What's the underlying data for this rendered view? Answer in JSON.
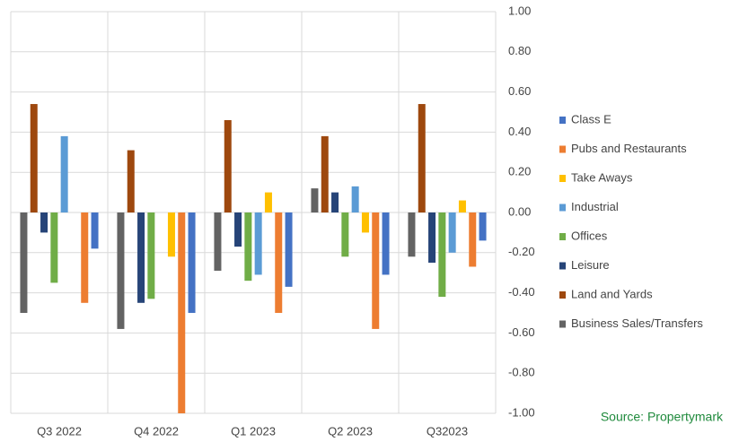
{
  "chart_data": {
    "type": "bar",
    "categories": [
      "Q3 2022",
      "Q4 2022",
      "Q1 2023",
      "Q2 2023",
      "Q32023"
    ],
    "series": [
      {
        "name": "Class E",
        "color": "#4472c4",
        "values": [
          -0.18,
          -0.5,
          -0.37,
          -0.31,
          -0.14
        ]
      },
      {
        "name": "Pubs and Restaurants",
        "color": "#ed7d31",
        "values": [
          -0.45,
          -1.0,
          -0.5,
          -0.58,
          -0.27
        ]
      },
      {
        "name": "Take Aways",
        "color": "#ffc000",
        "values": [
          0,
          -0.22,
          0.1,
          -0.1,
          0.06
        ]
      },
      {
        "name": "Industrial",
        "color": "#5b9bd5",
        "values": [
          0.38,
          0,
          -0.31,
          0.13,
          -0.2
        ]
      },
      {
        "name": "Offices",
        "color": "#70ad47",
        "values": [
          -0.35,
          -0.43,
          -0.34,
          -0.22,
          -0.42
        ]
      },
      {
        "name": "Leisure",
        "color": "#264478",
        "values": [
          -0.1,
          -0.45,
          -0.17,
          0.1,
          -0.25
        ]
      },
      {
        "name": "Land and Yards",
        "color": "#9e480e",
        "values": [
          0.54,
          0.31,
          0.46,
          0.38,
          0.54
        ]
      },
      {
        "name": "Business Sales/Transfers",
        "color": "#636363",
        "values": [
          -0.5,
          -0.58,
          -0.29,
          0.12,
          -0.22
        ]
      }
    ],
    "ylim": [
      -1,
      1
    ],
    "yticks": [
      {
        "value": 1,
        "label": "1.00"
      },
      {
        "value": 0.8,
        "label": "0.80"
      },
      {
        "value": 0.6,
        "label": "0.60"
      },
      {
        "value": 0.4,
        "label": "0.40"
      },
      {
        "value": 0.2,
        "label": "0.20"
      },
      {
        "value": 0,
        "label": "0.00"
      },
      {
        "value": -0.2,
        "label": "-0.20"
      },
      {
        "value": -0.4,
        "label": "-0.40"
      },
      {
        "value": -0.6,
        "label": "-0.60"
      },
      {
        "value": -0.8,
        "label": "-0.80"
      },
      {
        "value": -1,
        "label": "-1.00"
      }
    ],
    "grid": true,
    "legend": "right",
    "annotation": "Source: Propertymark"
  }
}
